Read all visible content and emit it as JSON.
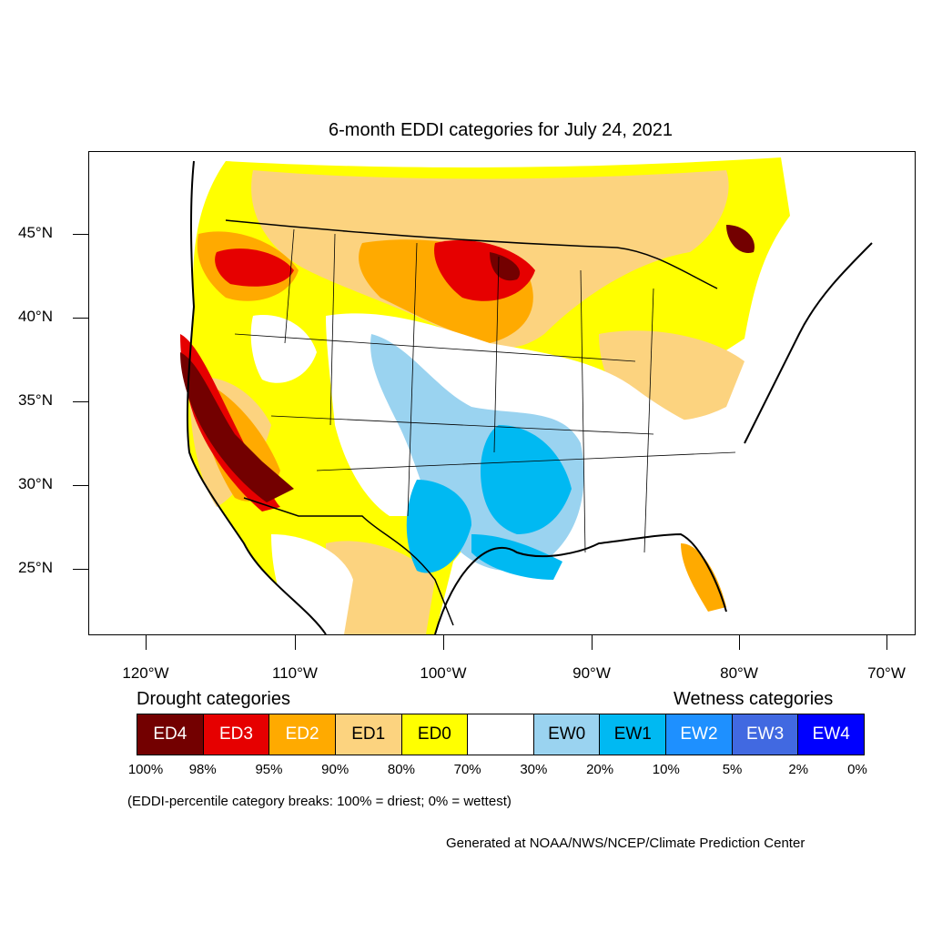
{
  "title": "6-month EDDI categories for July 24, 2021",
  "map": {
    "lat_labels": [
      "45°N",
      "40°N",
      "35°N",
      "30°N",
      "25°N"
    ],
    "lon_labels": [
      "120°W",
      "110°W",
      "100°W",
      "90°W",
      "80°W",
      "70°W"
    ]
  },
  "legend": {
    "drought_heading": "Drought categories",
    "wetness_heading": "Wetness categories",
    "categories": [
      {
        "label": "ED4",
        "color": "#730000",
        "text_color": "#ffffff"
      },
      {
        "label": "ED3",
        "color": "#e60000",
        "text_color": "#ffffff"
      },
      {
        "label": "ED2",
        "color": "#ffaa00",
        "text_color": "#ffffff"
      },
      {
        "label": "ED1",
        "color": "#fcd37f",
        "text_color": "#000000"
      },
      {
        "label": "ED0",
        "color": "#ffff00",
        "text_color": "#000000"
      },
      {
        "label": "",
        "color": "#ffffff",
        "text_color": "#000000"
      },
      {
        "label": "EW0",
        "color": "#9ad3f0",
        "text_color": "#000000"
      },
      {
        "label": "EW1",
        "color": "#00b9f2",
        "text_color": "#000000"
      },
      {
        "label": "EW2",
        "color": "#1e90ff",
        "text_color": "#ffffff"
      },
      {
        "label": "EW3",
        "color": "#4169e1",
        "text_color": "#ffffff"
      },
      {
        "label": "EW4",
        "color": "#0000ff",
        "text_color": "#ffffff"
      }
    ],
    "breaks": [
      "100%",
      "98%",
      "95%",
      "90%",
      "80%",
      "70%",
      "30%",
      "20%",
      "10%",
      "5%",
      "2%",
      "0%"
    ],
    "note": "(EDDI-percentile category breaks: 100% = driest; 0% = wettest)"
  },
  "credit": "Generated at NOAA/NWS/NCEP/Climate Prediction Center"
}
